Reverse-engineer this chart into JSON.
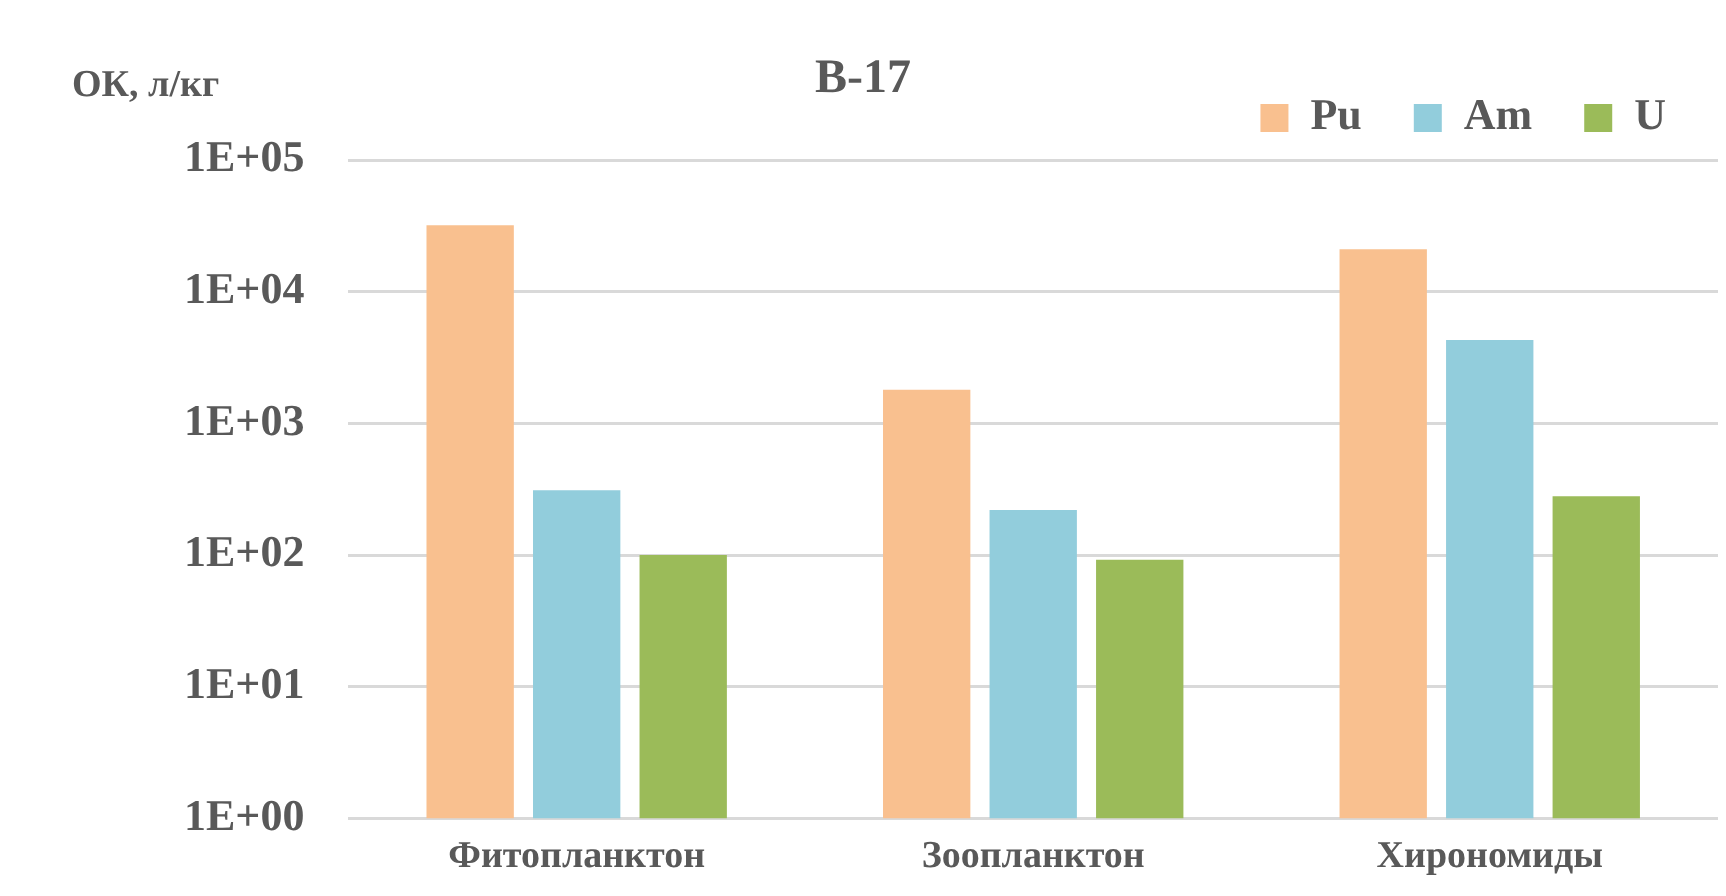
{
  "chart_data": {
    "type": "bar",
    "title": "В-17",
    "ylabel": "ОК, л/кг",
    "categories": [
      "Фитопланктон",
      "Зоопланктон",
      "Хирономиды"
    ],
    "series": [
      {
        "name": "Pu",
        "color": "#f9c08f",
        "values": [
          32000,
          1800,
          21000
        ]
      },
      {
        "name": "Am",
        "color": "#92cddc",
        "values": [
          310,
          220,
          4300
        ]
      },
      {
        "name": "U",
        "color": "#9bbb59",
        "values": [
          100,
          92,
          280
        ]
      }
    ],
    "log": "y",
    "ylim": [
      1,
      100000
    ],
    "yticks": [
      {
        "value": 1,
        "label": "1E+00"
      },
      {
        "value": 10,
        "label": "1E+01"
      },
      {
        "value": 100,
        "label": "1E+02"
      },
      {
        "value": 1000,
        "label": "1E+03"
      },
      {
        "value": 10000,
        "label": "1E+04"
      },
      {
        "value": 100000,
        "label": "1E+05"
      }
    ],
    "grid": "y",
    "legend": "top right"
  }
}
